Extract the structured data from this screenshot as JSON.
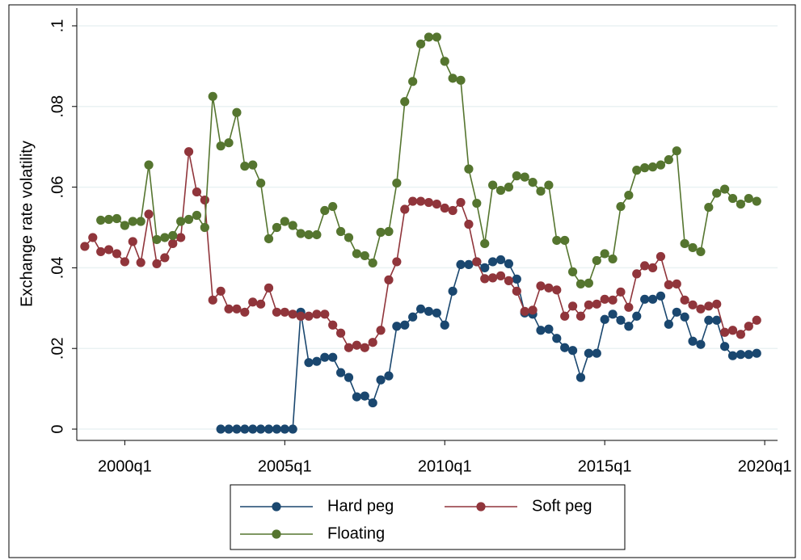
{
  "chart_data": {
    "type": "line",
    "y_label": "Exchange rate volatility",
    "categories": [
      "1998q4",
      "1999q1",
      "1999q2",
      "1999q3",
      "1999q4",
      "2000q1",
      "2000q2",
      "2000q3",
      "2000q4",
      "2001q1",
      "2001q2",
      "2001q3",
      "2001q4",
      "2002q1",
      "2002q2",
      "2002q3",
      "2002q4",
      "2003q1",
      "2003q2",
      "2003q3",
      "2003q4",
      "2004q1",
      "2004q2",
      "2004q3",
      "2004q4",
      "2005q1",
      "2005q2",
      "2005q3",
      "2005q4",
      "2006q1",
      "2006q2",
      "2006q3",
      "2006q4",
      "2007q1",
      "2007q2",
      "2007q3",
      "2007q4",
      "2008q1",
      "2008q2",
      "2008q3",
      "2008q4",
      "2009q1",
      "2009q2",
      "2009q3",
      "2009q4",
      "2010q1",
      "2010q2",
      "2010q3",
      "2010q4",
      "2011q1",
      "2011q2",
      "2011q3",
      "2011q4",
      "2012q1",
      "2012q2",
      "2012q3",
      "2012q4",
      "2013q1",
      "2013q2",
      "2013q3",
      "2013q4",
      "2014q1",
      "2014q2",
      "2014q3",
      "2014q4",
      "2015q1",
      "2015q2",
      "2015q3",
      "2015q4",
      "2016q1",
      "2016q2",
      "2016q3",
      "2016q4",
      "2017q1",
      "2017q2",
      "2017q3",
      "2017q4",
      "2018q1",
      "2018q2",
      "2018q3",
      "2018q4",
      "2019q1",
      "2019q2",
      "2019q3",
      "2019q4"
    ],
    "series": [
      {
        "name": "Hard peg",
        "color": "#1a476f",
        "values": [
          null,
          null,
          null,
          null,
          null,
          null,
          null,
          null,
          null,
          null,
          null,
          null,
          null,
          null,
          null,
          null,
          null,
          0,
          0,
          0,
          0,
          0,
          0,
          0,
          0,
          0,
          0,
          0.029,
          0.0165,
          0.0168,
          0.0178,
          0.0178,
          0.014,
          0.0128,
          0.008,
          0.0082,
          0.0065,
          0.0122,
          0.0132,
          0.0255,
          0.0258,
          0.0278,
          0.0298,
          0.0292,
          0.0288,
          0.0258,
          0.0342,
          0.0408,
          0.0408,
          0.0415,
          0.04,
          0.0415,
          0.042,
          0.041,
          0.0372,
          0.0288,
          0.0285,
          0.0245,
          0.0248,
          0.0225,
          0.0202,
          0.0195,
          0.0128,
          0.0188,
          0.0188,
          0.0272,
          0.0285,
          0.027,
          0.0255,
          0.028,
          0.0322,
          0.0322,
          0.033,
          0.026,
          0.029,
          0.0278,
          0.0218,
          0.021,
          0.027,
          0.027,
          0.0205,
          0.0182,
          0.0185,
          0.0185,
          0.0188
        ]
      },
      {
        "name": "Soft peg",
        "color": "#90353b",
        "values": [
          0.0453,
          0.0475,
          0.044,
          0.0445,
          0.0435,
          0.0415,
          0.0465,
          0.0413,
          0.0533,
          0.041,
          0.0425,
          0.046,
          0.0475,
          0.0688,
          0.0588,
          0.0568,
          0.032,
          0.0342,
          0.0298,
          0.0298,
          0.029,
          0.0315,
          0.031,
          0.035,
          0.029,
          0.029,
          0.0285,
          0.028,
          0.028,
          0.0285,
          0.0285,
          0.0258,
          0.0238,
          0.0202,
          0.0208,
          0.0202,
          0.0215,
          0.0245,
          0.037,
          0.0415,
          0.0545,
          0.0565,
          0.0565,
          0.0562,
          0.0558,
          0.0548,
          0.0542,
          0.0562,
          0.0508,
          0.0415,
          0.0373,
          0.0375,
          0.038,
          0.0368,
          0.0342,
          0.0292,
          0.0295,
          0.0355,
          0.035,
          0.0345,
          0.028,
          0.0305,
          0.028,
          0.0308,
          0.031,
          0.0322,
          0.032,
          0.034,
          0.0302,
          0.0385,
          0.0405,
          0.04,
          0.0428,
          0.0358,
          0.036,
          0.032,
          0.0308,
          0.0298,
          0.0305,
          0.031,
          0.024,
          0.0245,
          0.0235,
          0.0255,
          0.027
        ]
      },
      {
        "name": "Floating",
        "color": "#55752f",
        "values": [
          null,
          null,
          0.0518,
          0.052,
          0.0522,
          0.0505,
          0.0515,
          0.0515,
          0.0655,
          0.047,
          0.0475,
          0.048,
          0.0515,
          0.052,
          0.053,
          0.05,
          0.0825,
          0.0702,
          0.071,
          0.0785,
          0.0652,
          0.0655,
          0.061,
          0.0472,
          0.05,
          0.0515,
          0.0505,
          0.0485,
          0.0482,
          0.0482,
          0.0542,
          0.0552,
          0.049,
          0.0475,
          0.0435,
          0.043,
          0.0412,
          0.0488,
          0.049,
          0.061,
          0.0812,
          0.0862,
          0.0955,
          0.0972,
          0.0972,
          0.0912,
          0.087,
          0.0865,
          0.0645,
          0.056,
          0.046,
          0.0605,
          0.0592,
          0.06,
          0.0628,
          0.0625,
          0.0612,
          0.059,
          0.0605,
          0.0468,
          0.0468,
          0.039,
          0.036,
          0.0362,
          0.0418,
          0.0435,
          0.0422,
          0.0552,
          0.058,
          0.0642,
          0.0648,
          0.065,
          0.0655,
          0.0668,
          0.069,
          0.046,
          0.045,
          0.044,
          0.055,
          0.0585,
          0.0595,
          0.0572,
          0.0558,
          0.0572,
          0.0565
        ]
      }
    ],
    "xlim": [
      "1998q3",
      "2020q2"
    ],
    "xticks": [
      "2000q1",
      "2005q1",
      "2010q1",
      "2015q1",
      "2020q1"
    ],
    "ylim": [
      -0.0028,
      0.1044
    ],
    "yticks": [
      0,
      {
        "value": 0.02,
        "label": ".02"
      },
      {
        "value": 0.04,
        "label": ".04"
      },
      {
        "value": 0.06,
        "label": ".06"
      },
      {
        "value": 0.08,
        "label": ".08"
      },
      {
        "value": 0.1,
        "label": ".1"
      }
    ],
    "grid": true,
    "legend": "bottom"
  }
}
